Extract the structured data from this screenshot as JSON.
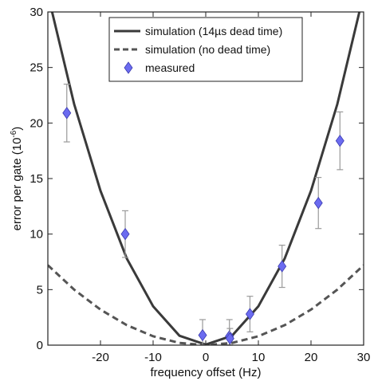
{
  "chart_data": {
    "type": "line",
    "xlabel": "frequency offset (Hz)",
    "ylabel": "error per gate (10",
    "ylabel_exponent": "-6",
    "ylabel_suffix": ")",
    "xlim": [
      -30,
      30
    ],
    "ylim": [
      0,
      30
    ],
    "xticks": [
      -20,
      -10,
      0,
      10,
      20,
      30
    ],
    "yticks": [
      0,
      5,
      10,
      15,
      20,
      25,
      30
    ],
    "legend_position": "top-center",
    "series": [
      {
        "name": "simulation (14µs dead time)",
        "kind": "line",
        "style": "solid",
        "color": "#3a3a3a",
        "x": [
          -30,
          -25,
          -20,
          -15,
          -10,
          -5,
          0,
          5,
          10,
          15,
          20,
          25,
          30
        ],
        "y": [
          31.6,
          21.7,
          13.9,
          7.8,
          3.5,
          0.85,
          0.05,
          0.85,
          3.5,
          7.8,
          13.9,
          21.7,
          31.6
        ]
      },
      {
        "name": "simulation (no dead time)",
        "kind": "line",
        "style": "dashed",
        "color": "#555555",
        "x": [
          -30,
          -25,
          -20,
          -15,
          -10,
          -5,
          0,
          5,
          10,
          15,
          20,
          25,
          30
        ],
        "y": [
          7.2,
          5.0,
          3.2,
          1.8,
          0.8,
          0.2,
          0.0,
          0.2,
          0.8,
          1.8,
          3.2,
          5.0,
          7.2
        ]
      },
      {
        "name": "measured",
        "kind": "scatter",
        "marker": "diamond",
        "color": "#6b6bf0",
        "x": [
          -26.4,
          -15.3,
          -0.6,
          4.5,
          4.6,
          8.4,
          14.5,
          21.4,
          25.5
        ],
        "y": [
          20.9,
          10.0,
          0.9,
          0.8,
          0.6,
          2.8,
          7.1,
          12.8,
          18.4
        ],
        "err": [
          2.6,
          2.1,
          1.4,
          1.5,
          0.9,
          1.6,
          1.9,
          2.3,
          2.6
        ]
      }
    ]
  }
}
